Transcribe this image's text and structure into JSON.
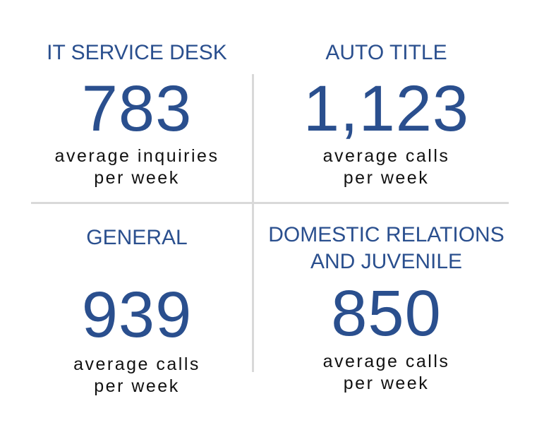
{
  "stats": [
    {
      "title": "IT SERVICE DESK",
      "value": "783",
      "desc_line1": "average inquiries",
      "desc_line2": "per week"
    },
    {
      "title": "AUTO TITLE",
      "value": "1,123",
      "desc_line1": "average calls",
      "desc_line2": "per week"
    },
    {
      "title": "GENERAL",
      "value": "939",
      "desc_line1": "average calls",
      "desc_line2": "per week"
    },
    {
      "title_line1": "DOMESTIC RELATIONS",
      "title_line2": "AND JUVENILE",
      "value": "850",
      "desc_line1": "average calls",
      "desc_line2": "per week"
    }
  ],
  "colors": {
    "accent": "#2a4f8e",
    "text": "#111111",
    "divider": "#d9d9d9"
  }
}
